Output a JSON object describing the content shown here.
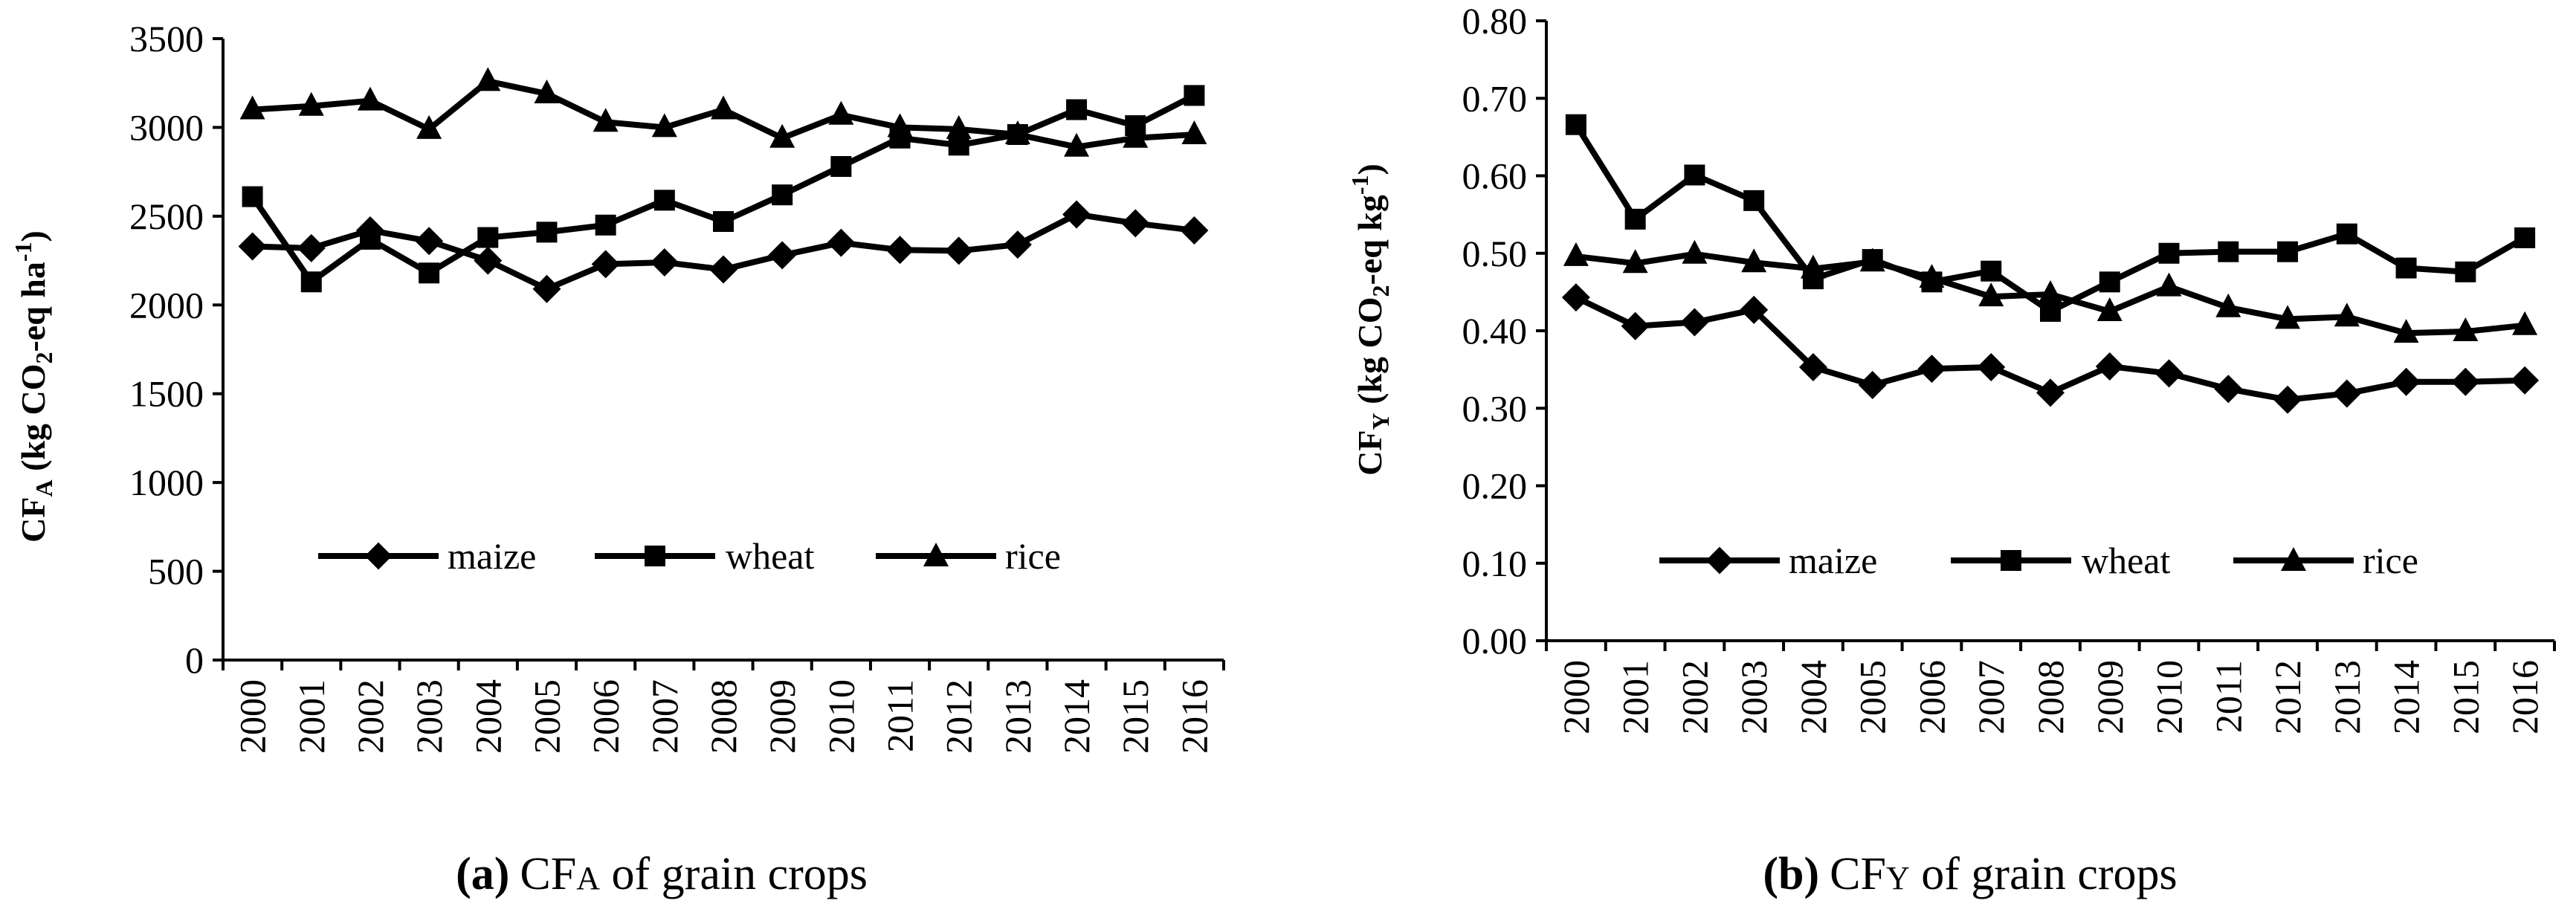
{
  "chart_data": [
    {
      "type": "line",
      "panel": "a",
      "categories": [
        "2000",
        "2001",
        "2002",
        "2003",
        "2004",
        "2005",
        "2006",
        "2007",
        "2008",
        "2009",
        "2010",
        "2011",
        "2012",
        "2013",
        "2014",
        "2015",
        "2016"
      ],
      "series": [
        {
          "name": "maize",
          "marker": "diamond",
          "values": [
            2330,
            2320,
            2420,
            2360,
            2250,
            2090,
            2230,
            2240,
            2200,
            2280,
            2350,
            2310,
            2305,
            2340,
            2510,
            2460,
            2420
          ]
        },
        {
          "name": "wheat",
          "marker": "square",
          "values": [
            2610,
            2130,
            2370,
            2180,
            2380,
            2410,
            2450,
            2590,
            2470,
            2620,
            2780,
            2940,
            2900,
            2960,
            3100,
            3010,
            3180
          ]
        },
        {
          "name": "rice",
          "marker": "triangle",
          "values": [
            3100,
            3120,
            3150,
            2990,
            3260,
            3190,
            3030,
            3000,
            3100,
            2940,
            3070,
            3000,
            2990,
            2960,
            2890,
            2940,
            2960
          ]
        }
      ],
      "ylim": [
        0,
        3500
      ],
      "yticks": [
        0,
        500,
        1000,
        1500,
        2000,
        2500,
        3000,
        3500
      ],
      "ytick_labels": [
        "0",
        "500",
        "1000",
        "1500",
        "2000",
        "2500",
        "3000",
        "3500"
      ],
      "ylabel": {
        "main": "CF",
        "sub": "A",
        "rest": " (kg CO",
        "sub2": "2",
        "rest2": "-eq ha",
        "sup": "-1",
        "end": ")"
      },
      "grid": false,
      "legend_position": "lower-center",
      "caption": {
        "label": "(a)",
        "prefix": "CF",
        "small": "A",
        "rest": " of grain crops"
      }
    },
    {
      "type": "line",
      "panel": "b",
      "categories": [
        "2000",
        "2001",
        "2002",
        "2003",
        "2004",
        "2005",
        "2006",
        "2007",
        "2008",
        "2009",
        "2010",
        "2011",
        "2012",
        "2013",
        "2014",
        "2015",
        "2016"
      ],
      "series": [
        {
          "name": "maize",
          "marker": "diamond",
          "values": [
            0.443,
            0.406,
            0.411,
            0.427,
            0.353,
            0.33,
            0.351,
            0.353,
            0.32,
            0.354,
            0.345,
            0.325,
            0.311,
            0.319,
            0.334,
            0.334,
            0.336
          ]
        },
        {
          "name": "wheat",
          "marker": "square",
          "values": [
            0.666,
            0.544,
            0.601,
            0.568,
            0.467,
            0.492,
            0.463,
            0.477,
            0.425,
            0.463,
            0.5,
            0.502,
            0.502,
            0.525,
            0.481,
            0.476,
            0.52
          ]
        },
        {
          "name": "rice",
          "marker": "triangle",
          "values": [
            0.496,
            0.487,
            0.499,
            0.488,
            0.48,
            0.489,
            0.468,
            0.444,
            0.447,
            0.425,
            0.457,
            0.43,
            0.415,
            0.418,
            0.397,
            0.399,
            0.407
          ]
        }
      ],
      "ylim": [
        0,
        0.8
      ],
      "yticks": [
        0,
        0.1,
        0.2,
        0.3,
        0.4,
        0.5,
        0.6,
        0.7,
        0.8
      ],
      "ytick_labels": [
        "0.00",
        "0.10",
        "0.20",
        "0.30",
        "0.40",
        "0.50",
        "0.60",
        "0.70",
        "0.80"
      ],
      "ylabel": {
        "main": "CF",
        "sub": "Y",
        "rest": " (kg CO",
        "sub2": "2",
        "rest2": "-eq kg",
        "sup": "-1",
        "end": ")"
      },
      "grid": false,
      "legend_position": "lower-center",
      "caption": {
        "label": "(b)",
        "prefix": "CF",
        "small": "Y",
        "rest": " of grain crops"
      }
    }
  ]
}
